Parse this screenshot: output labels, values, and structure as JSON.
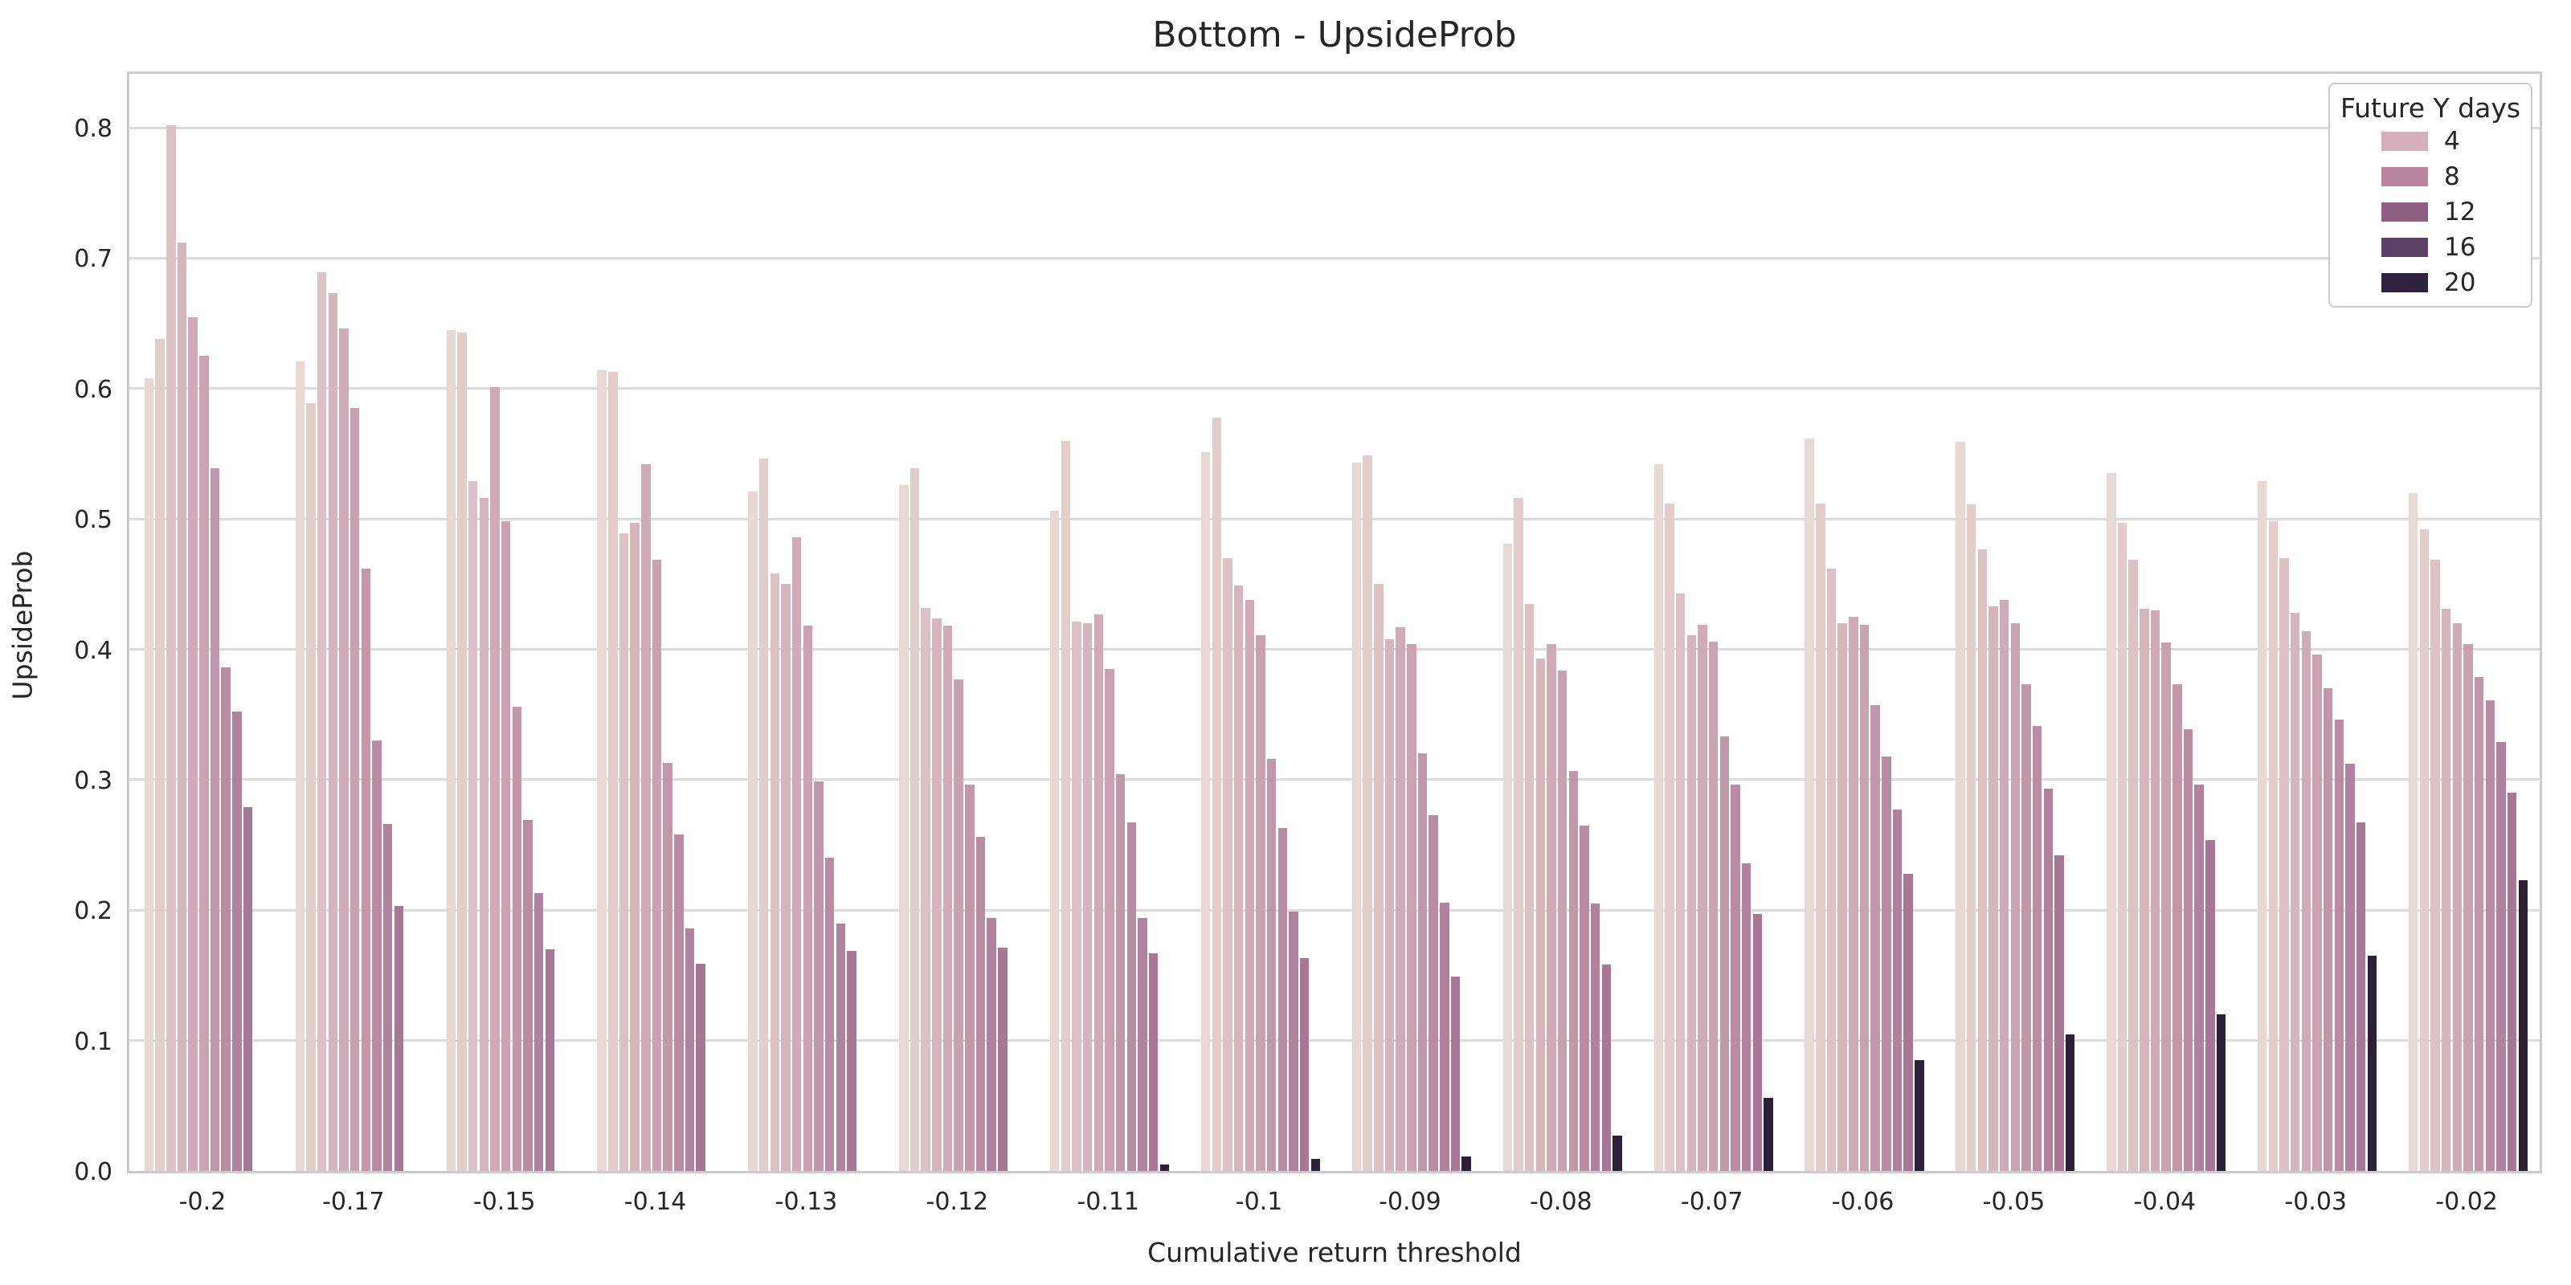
{
  "chart_data": {
    "type": "bar",
    "title": "Bottom - UpsideProb",
    "xlabel": "Cumulative return threshold",
    "ylabel": "UpsideProb",
    "ylim": [
      0,
      0.845
    ],
    "yticks": [
      "0.0",
      "0.1",
      "0.2",
      "0.3",
      "0.4",
      "0.5",
      "0.6",
      "0.7",
      "0.8"
    ],
    "grid": true,
    "legend_position": "upper right",
    "legend": {
      "title": "Future Y days",
      "entries": [
        {
          "label": "4",
          "color": "#d5b0ba"
        },
        {
          "label": "8",
          "color": "#b9859e"
        },
        {
          "label": "12",
          "color": "#8f6084"
        },
        {
          "label": "16",
          "color": "#5a4165"
        },
        {
          "label": "20",
          "color": "#2e2240"
        }
      ]
    },
    "bars_per_group": 11,
    "palette": [
      "#e8d8d4",
      "#e2cdcb",
      "#dcc2c4",
      "#d6b6bd",
      "#d0abb7",
      "#c9a1b0",
      "#c297aa",
      "#ba8ca3",
      "#b1829e",
      "#a77795",
      "#2b2038"
    ],
    "categories": [
      "-0.2",
      "-0.17",
      "-0.15",
      "-0.14",
      "-0.13",
      "-0.12",
      "-0.11",
      "-0.1",
      "-0.09",
      "-0.08",
      "-0.07",
      "-0.06",
      "-0.05",
      "-0.04",
      "-0.03",
      "-0.02"
    ],
    "groups": [
      {
        "label": "-0.2",
        "values": [
          0.608,
          0.638,
          0.802,
          0.712,
          0.655,
          0.625,
          0.539,
          0.386,
          0.352,
          0.279,
          0.0
        ]
      },
      {
        "label": "-0.17",
        "values": [
          0.621,
          0.589,
          0.689,
          0.673,
          0.646,
          0.585,
          0.462,
          0.33,
          0.266,
          0.203,
          0.0
        ]
      },
      {
        "label": "-0.15",
        "values": [
          0.645,
          0.643,
          0.529,
          0.516,
          0.601,
          0.498,
          0.356,
          0.269,
          0.213,
          0.17,
          0.0
        ]
      },
      {
        "label": "-0.14",
        "values": [
          0.614,
          0.613,
          0.489,
          0.497,
          0.542,
          0.469,
          0.313,
          0.258,
          0.186,
          0.159,
          0.0
        ]
      },
      {
        "label": "-0.13",
        "values": [
          0.521,
          0.546,
          0.458,
          0.45,
          0.486,
          0.418,
          0.299,
          0.24,
          0.19,
          0.169,
          0.0
        ]
      },
      {
        "label": "-0.12",
        "values": [
          0.526,
          0.539,
          0.432,
          0.424,
          0.418,
          0.377,
          0.296,
          0.256,
          0.194,
          0.171,
          0.0
        ]
      },
      {
        "label": "-0.11",
        "values": [
          0.506,
          0.56,
          0.421,
          0.42,
          0.427,
          0.385,
          0.304,
          0.267,
          0.194,
          0.167,
          0.005
        ]
      },
      {
        "label": "-0.1",
        "values": [
          0.551,
          0.578,
          0.47,
          0.449,
          0.438,
          0.411,
          0.316,
          0.263,
          0.199,
          0.163,
          0.009
        ]
      },
      {
        "label": "-0.09",
        "values": [
          0.543,
          0.549,
          0.45,
          0.408,
          0.417,
          0.404,
          0.32,
          0.273,
          0.206,
          0.149,
          0.011
        ]
      },
      {
        "label": "-0.08",
        "values": [
          0.481,
          0.516,
          0.435,
          0.393,
          0.404,
          0.384,
          0.307,
          0.265,
          0.205,
          0.158,
          0.027
        ]
      },
      {
        "label": "-0.07",
        "values": [
          0.542,
          0.512,
          0.443,
          0.411,
          0.419,
          0.406,
          0.333,
          0.296,
          0.236,
          0.197,
          0.056
        ]
      },
      {
        "label": "-0.06",
        "values": [
          0.562,
          0.512,
          0.462,
          0.42,
          0.425,
          0.419,
          0.357,
          0.318,
          0.277,
          0.228,
          0.085
        ]
      },
      {
        "label": "-0.05",
        "values": [
          0.559,
          0.511,
          0.477,
          0.433,
          0.438,
          0.42,
          0.373,
          0.341,
          0.293,
          0.242,
          0.105
        ]
      },
      {
        "label": "-0.04",
        "values": [
          0.535,
          0.497,
          0.469,
          0.431,
          0.43,
          0.405,
          0.373,
          0.339,
          0.296,
          0.254,
          0.12
        ]
      },
      {
        "label": "-0.03",
        "values": [
          0.529,
          0.498,
          0.47,
          0.428,
          0.414,
          0.396,
          0.37,
          0.346,
          0.312,
          0.267,
          0.165
        ]
      },
      {
        "label": "-0.02",
        "values": [
          0.52,
          0.492,
          0.469,
          0.431,
          0.42,
          0.404,
          0.379,
          0.361,
          0.329,
          0.29,
          0.223
        ]
      }
    ],
    "colors": {
      "text": "#262626",
      "gridline": "#dcdcdc",
      "axis_border": "#cccccc",
      "background": "#ffffff"
    }
  }
}
